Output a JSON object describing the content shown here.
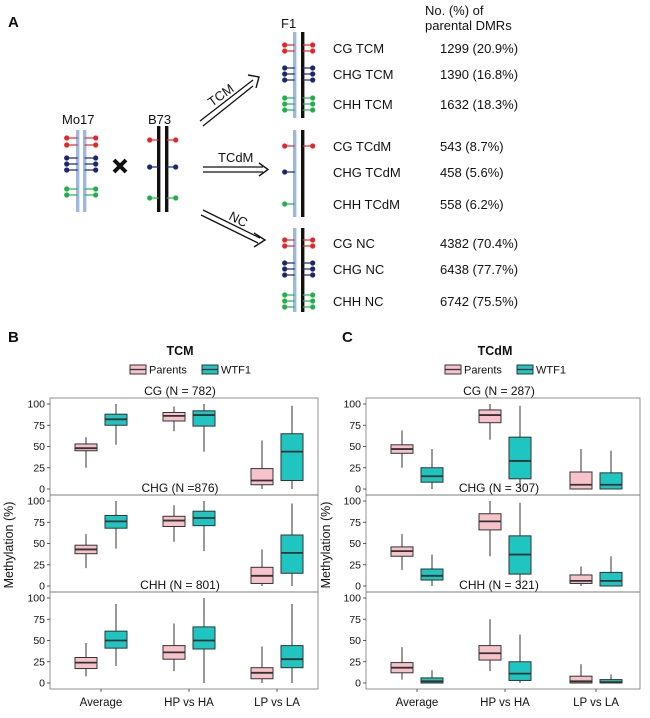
{
  "panels": {
    "A": "A",
    "B": "B",
    "C": "C"
  },
  "panel_a": {
    "parents": {
      "mo17": "Mo17",
      "b73": "B73"
    },
    "f1": "F1",
    "arrows": [
      "TCM",
      "TCdM",
      "NC"
    ],
    "count_header_1": "No. (%) of",
    "count_header_2": "parental DMRs",
    "rows": [
      {
        "label": "CG TCM",
        "count": "1299 (20.9%)"
      },
      {
        "label": "CHG TCM",
        "count": "1390 (16.8%)"
      },
      {
        "label": "CHH TCM",
        "count": "1632 (18.3%)"
      },
      {
        "label": "CG TCdM",
        "count": "543 (8.7%)"
      },
      {
        "label": "CHG TCdM",
        "count": "458 (5.6%)"
      },
      {
        "label": "CHH TCdM",
        "count": "558 (6.2%)"
      },
      {
        "label": "CG NC",
        "count": "4382 (70.4%)"
      },
      {
        "label": "CHG NC",
        "count": "6438 (77.7%)"
      },
      {
        "label": "CHH NC",
        "count": "6742 (75.5%)"
      }
    ],
    "colors": {
      "cg": "#e8242b",
      "chg": "#1a2670",
      "chh": "#20b24a",
      "parent_line": "#9db8de",
      "f1_line_left": "#9db8de"
    }
  },
  "chart_data": [
    {
      "type": "box",
      "title": "TCM",
      "ylabel": "Methylation (%)",
      "legend": [
        "Parents",
        "WTF1"
      ],
      "legend_placement": "top",
      "colors": {
        "Parents": "#f7c2c9",
        "WTF1": "#1fc5c1"
      },
      "categories": [
        "Average",
        "HP vs HA",
        "LP vs LA"
      ],
      "ylim": [
        0,
        100
      ],
      "yticks": [
        0,
        25,
        50,
        75,
        100
      ],
      "facets": [
        {
          "label": "CG (N = 782)",
          "boxes": [
            {
              "category": "Average",
              "group": "Parents",
              "whislo": 25,
              "q1": 45,
              "med": 48,
              "q3": 53,
              "whishi": 61
            },
            {
              "category": "Average",
              "group": "WTF1",
              "whislo": 52,
              "q1": 75,
              "med": 82,
              "q3": 88,
              "whishi": 100
            },
            {
              "category": "HP vs HA",
              "group": "Parents",
              "whislo": 68,
              "q1": 80,
              "med": 86,
              "q3": 90,
              "whishi": 97
            },
            {
              "category": "HP vs HA",
              "group": "WTF1",
              "whislo": 44,
              "q1": 74,
              "med": 87,
              "q3": 92,
              "whishi": 100
            },
            {
              "category": "LP vs LA",
              "group": "Parents",
              "whislo": 0,
              "q1": 5,
              "med": 10,
              "q3": 24,
              "whishi": 57
            },
            {
              "category": "LP vs LA",
              "group": "WTF1",
              "whislo": 0,
              "q1": 10,
              "med": 44,
              "q3": 65,
              "whishi": 98
            }
          ]
        },
        {
          "label": "CHG (N =876)",
          "boxes": [
            {
              "category": "Average",
              "group": "Parents",
              "whislo": 21,
              "q1": 38,
              "med": 43,
              "q3": 48,
              "whishi": 61
            },
            {
              "category": "Average",
              "group": "WTF1",
              "whislo": 44,
              "q1": 68,
              "med": 76,
              "q3": 83,
              "whishi": 100
            },
            {
              "category": "HP vs HA",
              "group": "Parents",
              "whislo": 52,
              "q1": 70,
              "med": 77,
              "q3": 82,
              "whishi": 95
            },
            {
              "category": "HP vs HA",
              "group": "WTF1",
              "whislo": 41,
              "q1": 71,
              "med": 80,
              "q3": 88,
              "whishi": 100
            },
            {
              "category": "LP vs LA",
              "group": "Parents",
              "whislo": 0,
              "q1": 3,
              "med": 12,
              "q3": 22,
              "whishi": 43
            },
            {
              "category": "LP vs LA",
              "group": "WTF1",
              "whislo": 0,
              "q1": 15,
              "med": 39,
              "q3": 60,
              "whishi": 97
            }
          ]
        },
        {
          "label": "CHH (N = 801)",
          "boxes": [
            {
              "category": "Average",
              "group": "Parents",
              "whislo": 8,
              "q1": 17,
              "med": 24,
              "q3": 30,
              "whishi": 47
            },
            {
              "category": "Average",
              "group": "WTF1",
              "whislo": 20,
              "q1": 41,
              "med": 50,
              "q3": 61,
              "whishi": 93
            },
            {
              "category": "HP vs HA",
              "group": "Parents",
              "whislo": 14,
              "q1": 28,
              "med": 36,
              "q3": 44,
              "whishi": 70
            },
            {
              "category": "HP vs HA",
              "group": "WTF1",
              "whislo": 0,
              "q1": 40,
              "med": 50,
              "q3": 66,
              "whishi": 100
            },
            {
              "category": "LP vs LA",
              "group": "Parents",
              "whislo": 0,
              "q1": 5,
              "med": 12,
              "q3": 18,
              "whishi": 43
            },
            {
              "category": "LP vs LA",
              "group": "WTF1",
              "whislo": 0,
              "q1": 18,
              "med": 28,
              "q3": 44,
              "whishi": 93
            }
          ]
        }
      ]
    },
    {
      "type": "box",
      "title": "TCdM",
      "ylabel": "Methylation (%)",
      "legend": [
        "Parents",
        "WTF1"
      ],
      "legend_placement": "top",
      "colors": {
        "Parents": "#f7c2c9",
        "WTF1": "#1fc5c1"
      },
      "categories": [
        "Average",
        "HP vs HA",
        "LP vs LA"
      ],
      "ylim": [
        0,
        100
      ],
      "yticks": [
        0,
        25,
        50,
        75,
        100
      ],
      "facets": [
        {
          "label": "CG (N = 287)",
          "boxes": [
            {
              "category": "Average",
              "group": "Parents",
              "whislo": 25,
              "q1": 42,
              "med": 47,
              "q3": 52,
              "whishi": 69
            },
            {
              "category": "Average",
              "group": "WTF1",
              "whislo": 0,
              "q1": 8,
              "med": 15,
              "q3": 25,
              "whishi": 47
            },
            {
              "category": "HP vs HA",
              "group": "Parents",
              "whislo": 58,
              "q1": 78,
              "med": 87,
              "q3": 93,
              "whishi": 100
            },
            {
              "category": "HP vs HA",
              "group": "WTF1",
              "whislo": 0,
              "q1": 12,
              "med": 33,
              "q3": 61,
              "whishi": 98
            },
            {
              "category": "LP vs LA",
              "group": "Parents",
              "whislo": 0,
              "q1": 0,
              "med": 5,
              "q3": 20,
              "whishi": 47
            },
            {
              "category": "LP vs LA",
              "group": "WTF1",
              "whislo": 0,
              "q1": 0,
              "med": 5,
              "q3": 19,
              "whishi": 45
            }
          ]
        },
        {
          "label": "CHG (N = 307)",
          "boxes": [
            {
              "category": "Average",
              "group": "Parents",
              "whislo": 19,
              "q1": 35,
              "med": 41,
              "q3": 46,
              "whishi": 61
            },
            {
              "category": "Average",
              "group": "WTF1",
              "whislo": 0,
              "q1": 7,
              "med": 12,
              "q3": 20,
              "whishi": 37
            },
            {
              "category": "HP vs HA",
              "group": "Parents",
              "whislo": 35,
              "q1": 66,
              "med": 76,
              "q3": 85,
              "whishi": 100
            },
            {
              "category": "HP vs HA",
              "group": "WTF1",
              "whislo": 0,
              "q1": 14,
              "med": 37,
              "q3": 59,
              "whishi": 98
            },
            {
              "category": "LP vs LA",
              "group": "Parents",
              "whislo": 0,
              "q1": 3,
              "med": 6,
              "q3": 13,
              "whishi": 23
            },
            {
              "category": "LP vs LA",
              "group": "WTF1",
              "whislo": 0,
              "q1": 0,
              "med": 6,
              "q3": 16,
              "whishi": 35
            }
          ]
        },
        {
          "label": "CHH (N = 321)",
          "boxes": [
            {
              "category": "Average",
              "group": "Parents",
              "whislo": 4,
              "q1": 12,
              "med": 18,
              "q3": 24,
              "whishi": 42
            },
            {
              "category": "Average",
              "group": "WTF1",
              "whislo": 0,
              "q1": 0,
              "med": 2,
              "q3": 6,
              "whishi": 15
            },
            {
              "category": "HP vs HA",
              "group": "Parents",
              "whislo": 14,
              "q1": 27,
              "med": 35,
              "q3": 44,
              "whishi": 75
            },
            {
              "category": "HP vs HA",
              "group": "WTF1",
              "whislo": 0,
              "q1": 3,
              "med": 11,
              "q3": 25,
              "whishi": 57
            },
            {
              "category": "LP vs LA",
              "group": "Parents",
              "whislo": 0,
              "q1": 0,
              "med": 2,
              "q3": 8,
              "whishi": 22
            },
            {
              "category": "LP vs LA",
              "group": "WTF1",
              "whislo": 0,
              "q1": 0,
              "med": 1,
              "q3": 4,
              "whishi": 10
            }
          ]
        }
      ]
    }
  ]
}
